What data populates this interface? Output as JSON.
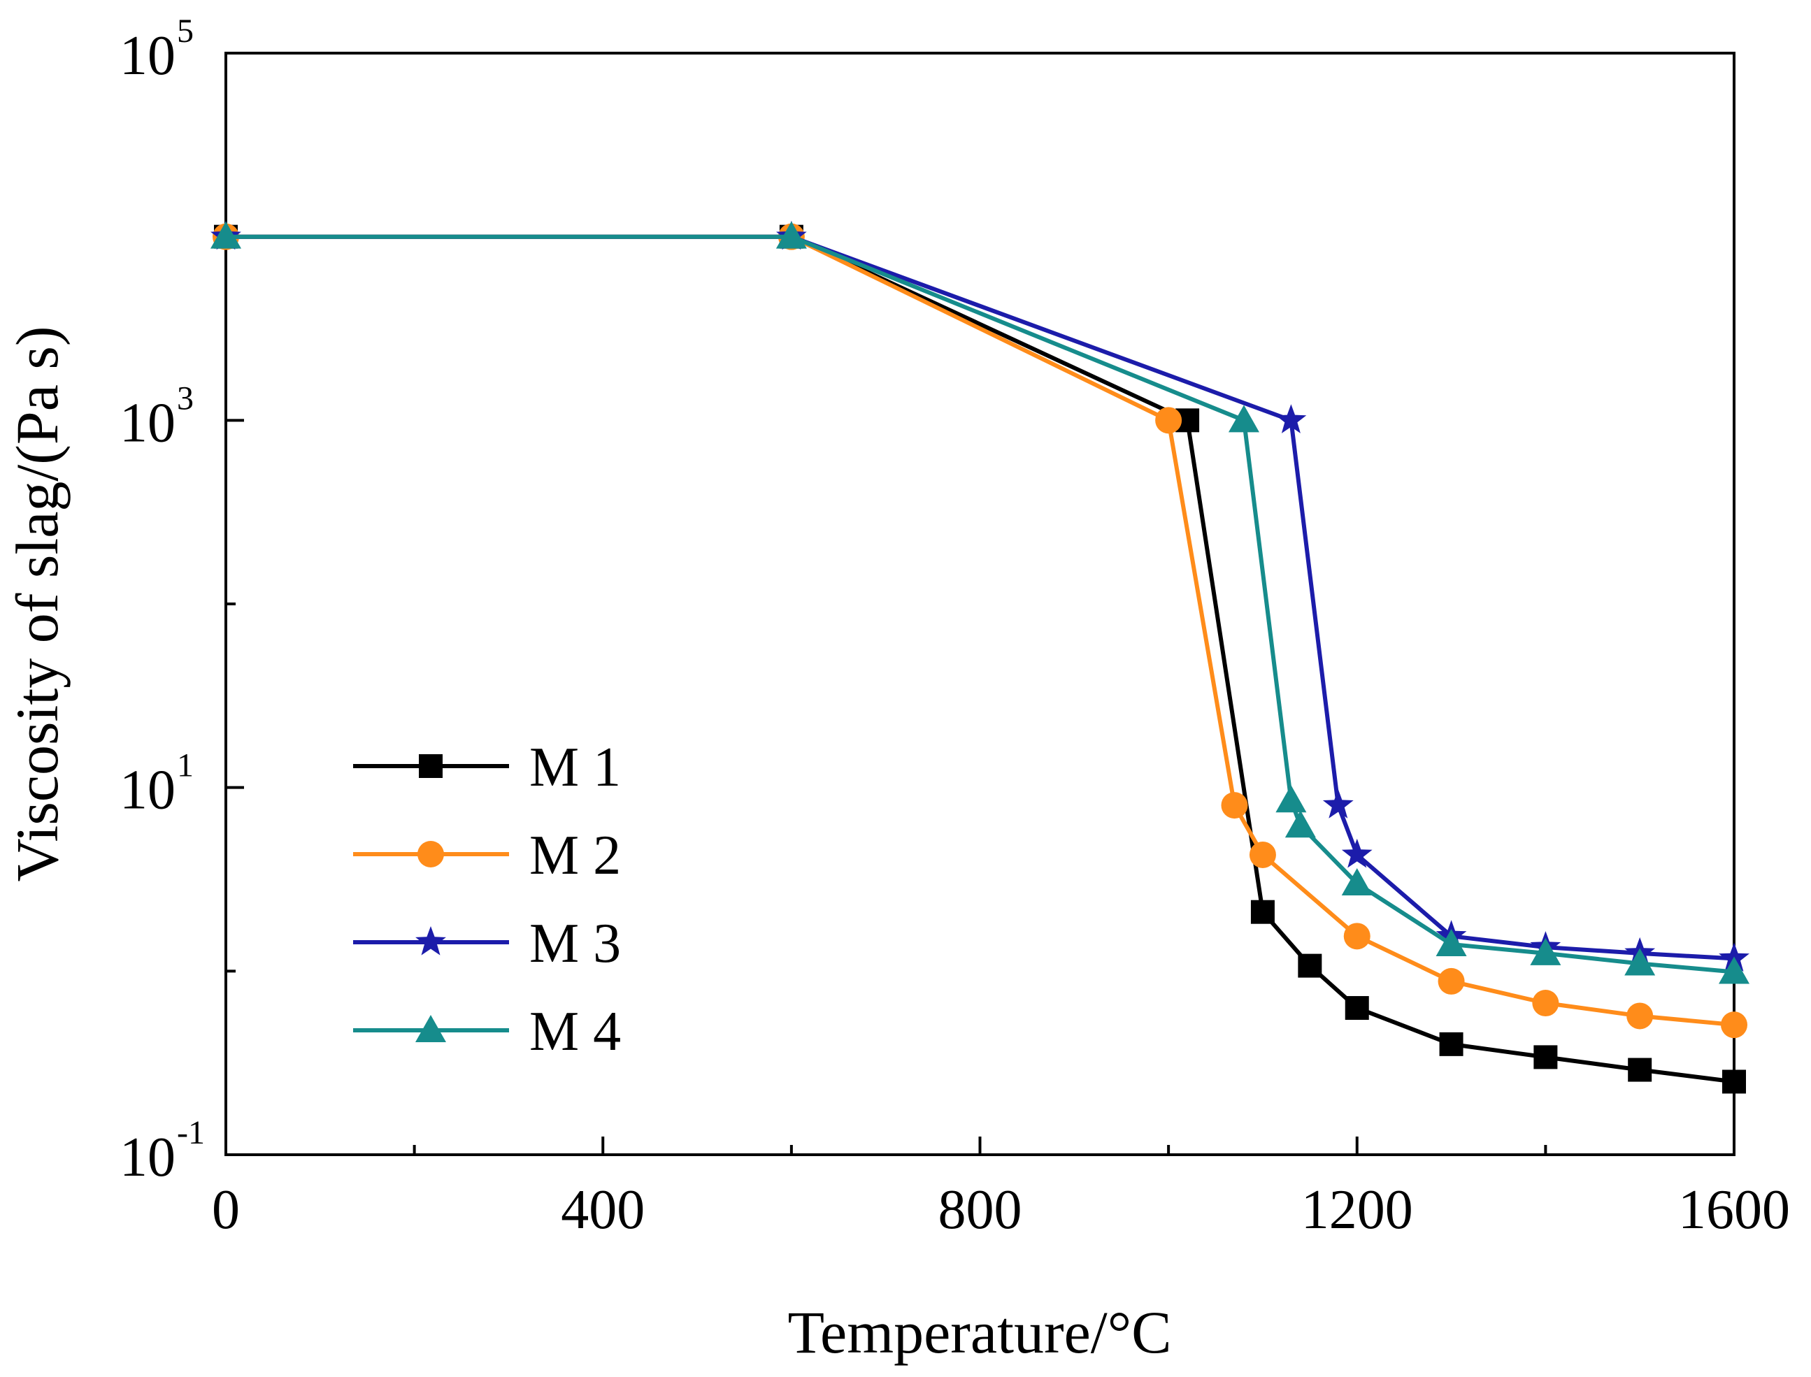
{
  "chart_data": {
    "type": "line",
    "title": "",
    "xlabel": "Temperature/°C",
    "ylabel": "Viscosity of slag/(Pa s)",
    "yscale": "log",
    "xlim": [
      0,
      1600
    ],
    "ylim": [
      0.1,
      100000
    ],
    "xticks": [
      {
        "value": 0,
        "label": "0"
      },
      {
        "value": 400,
        "label": "400"
      },
      {
        "value": 800,
        "label": "800"
      },
      {
        "value": 1200,
        "label": "1200"
      },
      {
        "value": 1600,
        "label": "1600"
      }
    ],
    "xminor_ticks": [
      200,
      600,
      1000,
      1400
    ],
    "yticks": [
      {
        "value": 0.1,
        "base": "10",
        "exp": "-1"
      },
      {
        "value": 10,
        "base": "10",
        "exp": "1"
      },
      {
        "value": 1000,
        "base": "10",
        "exp": "3"
      },
      {
        "value": 100000,
        "base": "10",
        "exp": "5"
      }
    ],
    "yminor_ticks": [
      1,
      100,
      10000
    ],
    "legend_position": "lower-left",
    "series": [
      {
        "name": "M 1",
        "color": "#000000",
        "marker": "square",
        "x": [
          0,
          600,
          1020,
          1100,
          1150,
          1200,
          1300,
          1400,
          1500,
          1600
        ],
        "y": [
          10000,
          10000,
          1000,
          2.1,
          1.07,
          0.63,
          0.4,
          0.34,
          0.29,
          0.25
        ]
      },
      {
        "name": "M 2",
        "color": "#ff8c1a",
        "marker": "circle",
        "x": [
          0,
          600,
          1000,
          1070,
          1100,
          1200,
          1300,
          1400,
          1500,
          1600
        ],
        "y": [
          10000,
          10000,
          1000,
          8.0,
          4.3,
          1.55,
          0.88,
          0.67,
          0.57,
          0.51
        ]
      },
      {
        "name": "M 3",
        "color": "#1c1caa",
        "marker": "star",
        "x": [
          0,
          600,
          1130,
          1180,
          1200,
          1300,
          1400,
          1500,
          1600
        ],
        "y": [
          10000,
          10000,
          1000,
          8.0,
          4.3,
          1.55,
          1.35,
          1.25,
          1.17
        ]
      },
      {
        "name": "M 4",
        "color": "#168c8c",
        "marker": "triangle",
        "x": [
          0,
          600,
          1080,
          1130,
          1140,
          1200,
          1300,
          1400,
          1500,
          1600
        ],
        "y": [
          10000,
          10000,
          1000,
          8.5,
          6.2,
          3.0,
          1.4,
          1.25,
          1.1,
          0.99
        ]
      }
    ]
  }
}
